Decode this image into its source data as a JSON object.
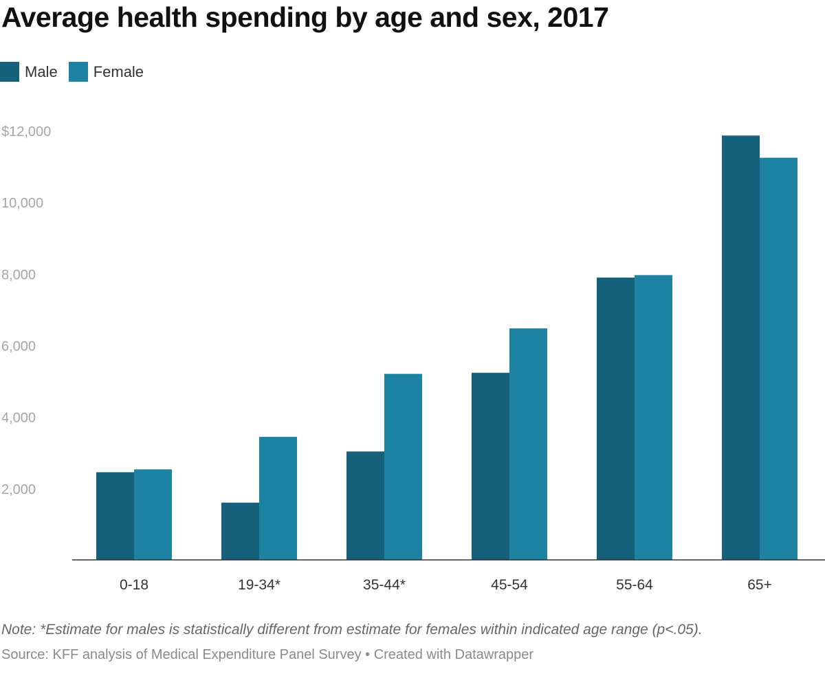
{
  "title": "Average health spending by age and sex, 2017",
  "legend": [
    {
      "label": "Male",
      "color": "#17607a"
    },
    {
      "label": "Female",
      "color": "#1e83a2"
    }
  ],
  "note": "Note: *Estimate for males is statistically different from estimate for females within indicated age range (p<.05).",
  "source": "Source: KFF analysis of Medical Expenditure Panel Survey • Created with Datawrapper",
  "chart_data": {
    "type": "bar",
    "categories": [
      "0-18",
      "19-34*",
      "35-44*",
      "45-54",
      "55-64",
      "65+"
    ],
    "series": [
      {
        "name": "Male",
        "color": "#17607a",
        "values": [
          2450,
          1600,
          3030,
          5230,
          7890,
          11860
        ]
      },
      {
        "name": "Female",
        "color": "#1e83a2",
        "values": [
          2530,
          3440,
          5200,
          6470,
          7960,
          11240
        ]
      }
    ],
    "ylim": [
      0,
      12000
    ],
    "yticks": [
      2000,
      4000,
      6000,
      8000,
      10000,
      12000
    ],
    "ytick_labels": [
      "2,000",
      "4,000",
      "6,000",
      "8,000",
      "10,000",
      "$12,000"
    ],
    "grid": false,
    "legend_position": "top-left"
  }
}
